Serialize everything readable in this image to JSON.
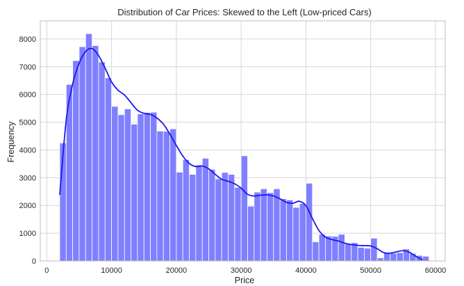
{
  "chart_data": {
    "type": "bar",
    "title": "Distribution of Car Prices: Skewed to the Left (Low-priced Cars)",
    "xlabel": "Price",
    "ylabel": "Frequency",
    "xlim": [
      -1000,
      61500
    ],
    "ylim": [
      0,
      8650
    ],
    "xticks": [
      0,
      10000,
      20000,
      30000,
      40000,
      50000,
      60000
    ],
    "yticks": [
      0,
      1000,
      2000,
      3000,
      4000,
      5000,
      6000,
      7000,
      8000
    ],
    "grid": true,
    "bin_start": 2000,
    "bin_width": 1000,
    "series": [
      {
        "counts": [
          4250,
          6360,
          7220,
          7720,
          8190,
          7760,
          7170,
          6600,
          5570,
          5270,
          5480,
          4930,
          5300,
          5350,
          5360,
          4680,
          4670,
          4760,
          3200,
          3650,
          3120,
          3460,
          3700,
          3300,
          2960,
          3190,
          3120,
          2650,
          3790,
          1970,
          2480,
          2600,
          2460,
          2600,
          2240,
          2200,
          1930,
          2070,
          2800,
          690,
          960,
          900,
          890,
          960,
          610,
          660,
          490,
          460,
          820,
          110,
          310,
          280,
          300,
          430,
          270,
          200,
          170
        ]
      }
    ],
    "kde": {
      "x": [
        2000,
        3000,
        4000,
        5000,
        6000,
        7000,
        8000,
        9000,
        10000,
        11000,
        12000,
        13000,
        14000,
        15000,
        16000,
        17000,
        18000,
        19000,
        20000,
        21000,
        22000,
        23000,
        24000,
        25000,
        26000,
        27000,
        28000,
        29000,
        30000,
        31000,
        32000,
        33000,
        34000,
        35000,
        36000,
        37000,
        38000,
        39000,
        40000,
        41000,
        42000,
        43000,
        44000,
        45000,
        46000,
        47000,
        48000,
        49000,
        50000,
        51000,
        52000,
        53000,
        54000,
        55000,
        56000,
        57000,
        58000
      ],
      "y": [
        2380,
        5070,
        6380,
        7120,
        7550,
        7650,
        7400,
        6950,
        6450,
        6150,
        5980,
        5700,
        5430,
        5320,
        5280,
        5150,
        4930,
        4570,
        4160,
        3780,
        3510,
        3400,
        3420,
        3320,
        3120,
        2940,
        2870,
        2780,
        2620,
        2400,
        2340,
        2370,
        2380,
        2340,
        2240,
        2110,
        2080,
        2150,
        1990,
        1530,
        1100,
        860,
        770,
        720,
        640,
        590,
        560,
        550,
        540,
        440,
        300,
        280,
        330,
        370,
        310,
        160,
        40
      ]
    },
    "colors": {
      "bar_fill": "#8080ff",
      "bar_edge": "#ffffff",
      "kde_line": "#1c17ec",
      "grid": "#d6d6d6",
      "frame": "#bcbcbc"
    }
  }
}
